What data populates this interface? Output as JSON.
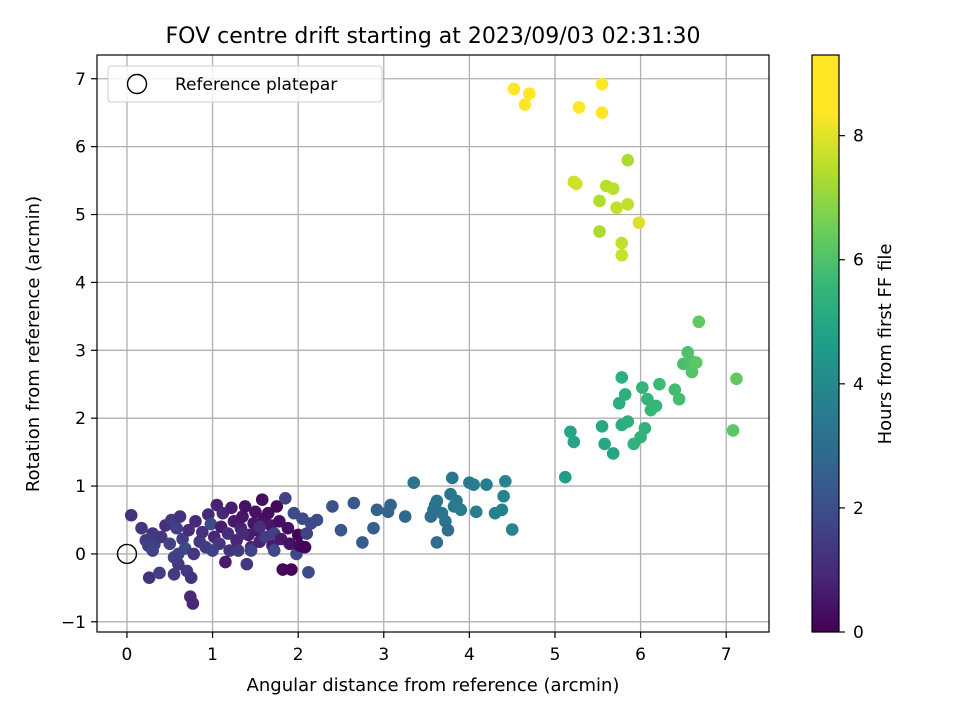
{
  "chart_data": {
    "type": "scatter",
    "title": "FOV centre drift starting at 2023/09/03 02:31:30",
    "xlabel": "Angular distance from reference (arcmin)",
    "ylabel": "Rotation from reference (arcmin)",
    "xlim": [
      -0.35,
      7.5
    ],
    "ylim": [
      -1.15,
      7.35
    ],
    "xticks": [
      0,
      1,
      2,
      3,
      4,
      5,
      6,
      7
    ],
    "yticks": [
      -1,
      0,
      1,
      2,
      3,
      4,
      5,
      6,
      7
    ],
    "grid": true,
    "legend": {
      "position": "top-left",
      "entries": [
        "Reference platepar"
      ]
    },
    "reference_point": {
      "x": 0,
      "y": 0,
      "marker": "open-circle"
    },
    "colorbar": {
      "label": "Hours from first FF file",
      "range": [
        0,
        9.3
      ],
      "ticks": [
        0,
        2,
        4,
        6,
        8
      ],
      "colormap": "viridis"
    },
    "points": [
      {
        "x": 0.05,
        "y": 0.57,
        "c": 1.2
      },
      {
        "x": 0.17,
        "y": 0.38,
        "c": 1.3
      },
      {
        "x": 0.22,
        "y": 0.2,
        "c": 1.5
      },
      {
        "x": 0.25,
        "y": 0.12,
        "c": 1.6
      },
      {
        "x": 0.3,
        "y": 0.3,
        "c": 1.4
      },
      {
        "x": 0.32,
        "y": 0.14,
        "c": 1.5
      },
      {
        "x": 0.26,
        "y": -0.35,
        "c": 1.2
      },
      {
        "x": 0.38,
        "y": -0.28,
        "c": 1.6
      },
      {
        "x": 0.4,
        "y": 0.25,
        "c": 1.3
      },
      {
        "x": 0.45,
        "y": 0.42,
        "c": 1.1
      },
      {
        "x": 0.5,
        "y": 0.15,
        "c": 1.7
      },
      {
        "x": 0.52,
        "y": 0.5,
        "c": 1.4
      },
      {
        "x": 0.55,
        "y": -0.3,
        "c": 1.5
      },
      {
        "x": 0.58,
        "y": 0.38,
        "c": 1.6
      },
      {
        "x": 0.6,
        "y": -0.15,
        "c": 1.3
      },
      {
        "x": 0.62,
        "y": 0.55,
        "c": 1.2
      },
      {
        "x": 0.65,
        "y": 0.22,
        "c": 1.5
      },
      {
        "x": 0.68,
        "y": 0.08,
        "c": 1.8
      },
      {
        "x": 0.7,
        "y": -0.25,
        "c": 1.4
      },
      {
        "x": 0.72,
        "y": 0.35,
        "c": 1.1
      },
      {
        "x": 0.74,
        "y": -0.63,
        "c": 1.0
      },
      {
        "x": 0.77,
        "y": -0.73,
        "c": 0.9
      },
      {
        "x": 0.75,
        "y": -0.35,
        "c": 1.2
      },
      {
        "x": 0.78,
        "y": 0.0,
        "c": 1.3
      },
      {
        "x": 0.8,
        "y": 0.48,
        "c": 1.0
      },
      {
        "x": 0.85,
        "y": 0.18,
        "c": 1.4
      },
      {
        "x": 0.88,
        "y": 0.32,
        "c": 1.2
      },
      {
        "x": 0.92,
        "y": 0.1,
        "c": 1.5
      },
      {
        "x": 0.95,
        "y": 0.58,
        "c": 1.0
      },
      {
        "x": 0.98,
        "y": 0.44,
        "c": 1.9
      },
      {
        "x": 1.02,
        "y": 0.25,
        "c": 0.9
      },
      {
        "x": 1.05,
        "y": 0.72,
        "c": 0.8
      },
      {
        "x": 1.08,
        "y": 0.15,
        "c": 1.3
      },
      {
        "x": 1.1,
        "y": 0.4,
        "c": 0.7
      },
      {
        "x": 1.12,
        "y": 0.6,
        "c": 0.9
      },
      {
        "x": 1.15,
        "y": -0.12,
        "c": 0.6
      },
      {
        "x": 1.18,
        "y": 0.3,
        "c": 1.1
      },
      {
        "x": 1.2,
        "y": 0.05,
        "c": 1.2
      },
      {
        "x": 1.22,
        "y": 0.68,
        "c": 0.7
      },
      {
        "x": 1.25,
        "y": 0.48,
        "c": 0.6
      },
      {
        "x": 1.28,
        "y": 0.2,
        "c": 0.9
      },
      {
        "x": 1.3,
        "y": 0.05,
        "c": 1.4
      },
      {
        "x": 1.33,
        "y": 0.38,
        "c": 0.8
      },
      {
        "x": 1.35,
        "y": 0.55,
        "c": 0.5
      },
      {
        "x": 1.38,
        "y": 0.7,
        "c": 0.4
      },
      {
        "x": 1.4,
        "y": -0.15,
        "c": 1.3
      },
      {
        "x": 1.42,
        "y": 0.28,
        "c": 0.7
      },
      {
        "x": 1.45,
        "y": 0.1,
        "c": 0.9
      },
      {
        "x": 1.48,
        "y": 0.45,
        "c": 0.5
      },
      {
        "x": 1.5,
        "y": 0.62,
        "c": 0.4
      },
      {
        "x": 1.52,
        "y": 0.35,
        "c": 0.6
      },
      {
        "x": 1.55,
        "y": 0.18,
        "c": 0.8
      },
      {
        "x": 1.58,
        "y": 0.8,
        "c": 0.3
      },
      {
        "x": 1.6,
        "y": 0.52,
        "c": 0.4
      },
      {
        "x": 1.62,
        "y": 0.25,
        "c": 1.5
      },
      {
        "x": 1.65,
        "y": 0.6,
        "c": 0.3
      },
      {
        "x": 1.68,
        "y": 0.42,
        "c": 0.5
      },
      {
        "x": 1.7,
        "y": 0.12,
        "c": 0.7
      },
      {
        "x": 1.72,
        "y": 0.3,
        "c": 1.6
      },
      {
        "x": 1.75,
        "y": 0.7,
        "c": 0.2
      },
      {
        "x": 1.78,
        "y": 0.48,
        "c": 0.3
      },
      {
        "x": 1.8,
        "y": 0.22,
        "c": 0.6
      },
      {
        "x": 1.82,
        "y": -0.23,
        "c": 0.2
      },
      {
        "x": 1.85,
        "y": 0.82,
        "c": 1.7
      },
      {
        "x": 1.88,
        "y": 0.38,
        "c": 0.3
      },
      {
        "x": 1.9,
        "y": 0.15,
        "c": 0.4
      },
      {
        "x": 1.92,
        "y": -0.23,
        "c": 0.1
      },
      {
        "x": 1.95,
        "y": 0.6,
        "c": 1.8
      },
      {
        "x": 1.98,
        "y": 0.0,
        "c": 1.8
      },
      {
        "x": 2.0,
        "y": 0.28,
        "c": 0.1
      },
      {
        "x": 2.02,
        "y": 0.12,
        "c": 0.2
      },
      {
        "x": 2.05,
        "y": 0.52,
        "c": 1.9
      },
      {
        "x": 2.08,
        "y": 0.1,
        "c": 0.1
      },
      {
        "x": 2.1,
        "y": 0.3,
        "c": 1.7
      },
      {
        "x": 2.12,
        "y": -0.27,
        "c": 1.9
      },
      {
        "x": 2.15,
        "y": 0.45,
        "c": 1.8
      },
      {
        "x": 2.22,
        "y": 0.5,
        "c": 1.9
      },
      {
        "x": 1.0,
        "y": 0.05,
        "c": 1.6
      },
      {
        "x": 1.45,
        "y": 0.05,
        "c": 1.7
      },
      {
        "x": 1.72,
        "y": 0.05,
        "c": 1.8
      },
      {
        "x": 0.6,
        "y": 0.0,
        "c": 1.7
      },
      {
        "x": 0.55,
        "y": -0.05,
        "c": 1.6
      },
      {
        "x": 0.3,
        "y": 0.05,
        "c": 1.7
      },
      {
        "x": 1.35,
        "y": 0.3,
        "c": 1.0
      },
      {
        "x": 1.55,
        "y": 0.4,
        "c": 1.1
      },
      {
        "x": 2.4,
        "y": 0.7,
        "c": 2.1
      },
      {
        "x": 2.5,
        "y": 0.35,
        "c": 2.2
      },
      {
        "x": 2.65,
        "y": 0.75,
        "c": 2.3
      },
      {
        "x": 2.75,
        "y": 0.17,
        "c": 2.4
      },
      {
        "x": 2.88,
        "y": 0.38,
        "c": 2.5
      },
      {
        "x": 2.92,
        "y": 0.65,
        "c": 2.6
      },
      {
        "x": 3.05,
        "y": 0.62,
        "c": 2.7
      },
      {
        "x": 3.08,
        "y": 0.72,
        "c": 2.7
      },
      {
        "x": 3.25,
        "y": 0.55,
        "c": 2.8
      },
      {
        "x": 3.35,
        "y": 1.05,
        "c": 3.2
      },
      {
        "x": 3.55,
        "y": 0.55,
        "c": 3.0
      },
      {
        "x": 3.58,
        "y": 0.65,
        "c": 3.1
      },
      {
        "x": 3.6,
        "y": 0.72,
        "c": 3.1
      },
      {
        "x": 3.62,
        "y": 0.78,
        "c": 3.2
      },
      {
        "x": 3.62,
        "y": 0.17,
        "c": 3.0
      },
      {
        "x": 3.68,
        "y": 0.6,
        "c": 3.2
      },
      {
        "x": 3.72,
        "y": 0.48,
        "c": 3.3
      },
      {
        "x": 3.75,
        "y": 0.35,
        "c": 3.0
      },
      {
        "x": 3.78,
        "y": 0.88,
        "c": 3.3
      },
      {
        "x": 3.8,
        "y": 1.12,
        "c": 3.3
      },
      {
        "x": 3.82,
        "y": 0.7,
        "c": 3.4
      },
      {
        "x": 3.85,
        "y": 0.78,
        "c": 3.4
      },
      {
        "x": 3.9,
        "y": 0.65,
        "c": 3.5
      },
      {
        "x": 4.0,
        "y": 1.05,
        "c": 3.4
      },
      {
        "x": 4.05,
        "y": 1.02,
        "c": 3.5
      },
      {
        "x": 4.08,
        "y": 0.62,
        "c": 3.6
      },
      {
        "x": 4.2,
        "y": 1.02,
        "c": 3.6
      },
      {
        "x": 4.3,
        "y": 0.6,
        "c": 3.7
      },
      {
        "x": 4.38,
        "y": 0.65,
        "c": 3.7
      },
      {
        "x": 4.4,
        "y": 0.85,
        "c": 3.8
      },
      {
        "x": 4.42,
        "y": 1.07,
        "c": 3.8
      },
      {
        "x": 4.5,
        "y": 0.36,
        "c": 3.9
      },
      {
        "x": 5.12,
        "y": 1.13,
        "c": 4.7
      },
      {
        "x": 5.18,
        "y": 1.8,
        "c": 4.9
      },
      {
        "x": 5.22,
        "y": 1.65,
        "c": 4.9
      },
      {
        "x": 5.55,
        "y": 1.88,
        "c": 5.0
      },
      {
        "x": 5.58,
        "y": 1.62,
        "c": 5.0
      },
      {
        "x": 5.68,
        "y": 1.48,
        "c": 4.9
      },
      {
        "x": 5.75,
        "y": 2.22,
        "c": 5.2
      },
      {
        "x": 5.78,
        "y": 2.6,
        "c": 5.3
      },
      {
        "x": 5.78,
        "y": 1.9,
        "c": 5.2
      },
      {
        "x": 5.82,
        "y": 2.35,
        "c": 5.3
      },
      {
        "x": 5.85,
        "y": 1.95,
        "c": 5.3
      },
      {
        "x": 5.92,
        "y": 1.62,
        "c": 5.4
      },
      {
        "x": 6.0,
        "y": 1.72,
        "c": 5.4
      },
      {
        "x": 6.02,
        "y": 2.45,
        "c": 5.5
      },
      {
        "x": 6.05,
        "y": 1.85,
        "c": 5.4
      },
      {
        "x": 6.08,
        "y": 2.28,
        "c": 5.5
      },
      {
        "x": 6.12,
        "y": 2.12,
        "c": 5.6
      },
      {
        "x": 6.18,
        "y": 2.18,
        "c": 5.6
      },
      {
        "x": 6.22,
        "y": 2.5,
        "c": 5.7
      },
      {
        "x": 6.4,
        "y": 2.42,
        "c": 5.8
      },
      {
        "x": 6.45,
        "y": 2.28,
        "c": 5.8
      },
      {
        "x": 6.5,
        "y": 2.8,
        "c": 5.9
      },
      {
        "x": 6.55,
        "y": 2.97,
        "c": 6.0
      },
      {
        "x": 6.58,
        "y": 2.85,
        "c": 6.0
      },
      {
        "x": 6.6,
        "y": 2.68,
        "c": 6.1
      },
      {
        "x": 6.65,
        "y": 2.82,
        "c": 6.2
      },
      {
        "x": 6.68,
        "y": 3.42,
        "c": 6.3
      },
      {
        "x": 7.08,
        "y": 1.82,
        "c": 6.2
      },
      {
        "x": 7.12,
        "y": 2.58,
        "c": 6.3
      },
      {
        "x": 5.52,
        "y": 4.75,
        "c": 7.3
      },
      {
        "x": 5.52,
        "y": 5.2,
        "c": 7.4
      },
      {
        "x": 5.6,
        "y": 5.42,
        "c": 7.5
      },
      {
        "x": 5.68,
        "y": 5.38,
        "c": 7.5
      },
      {
        "x": 5.72,
        "y": 5.1,
        "c": 7.6
      },
      {
        "x": 5.78,
        "y": 4.58,
        "c": 7.6
      },
      {
        "x": 5.78,
        "y": 4.4,
        "c": 7.7
      },
      {
        "x": 5.85,
        "y": 5.15,
        "c": 7.6
      },
      {
        "x": 5.85,
        "y": 5.8,
        "c": 7.3
      },
      {
        "x": 5.98,
        "y": 4.88,
        "c": 7.9
      },
      {
        "x": 5.22,
        "y": 5.48,
        "c": 7.7
      },
      {
        "x": 5.25,
        "y": 5.45,
        "c": 7.8
      },
      {
        "x": 4.52,
        "y": 6.85,
        "c": 9.2
      },
      {
        "x": 4.65,
        "y": 6.62,
        "c": 9.1
      },
      {
        "x": 4.7,
        "y": 6.78,
        "c": 9.1
      },
      {
        "x": 5.28,
        "y": 6.58,
        "c": 8.9
      },
      {
        "x": 5.55,
        "y": 6.5,
        "c": 8.8
      },
      {
        "x": 5.55,
        "y": 6.92,
        "c": 9.0
      }
    ]
  }
}
